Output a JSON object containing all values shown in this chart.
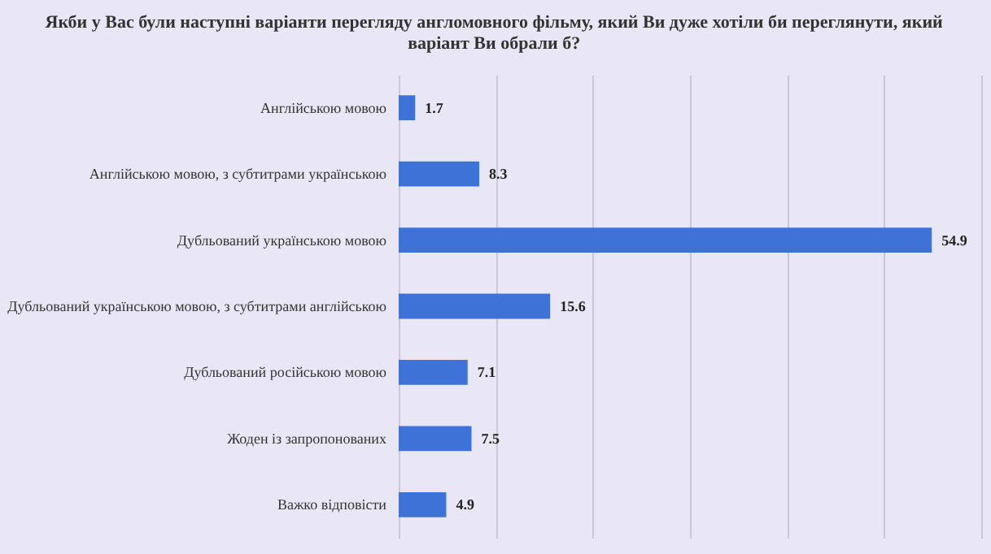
{
  "chart_data": {
    "type": "bar",
    "orientation": "horizontal",
    "title": "Якби у Вас були наступні варіанти перегляду англомовного фільму, який Ви дуже хотіли би переглянути, який варіант Ви обрали б?",
    "categories": [
      "Англійською мовою",
      "Англійською мовою, з субтитрами українською",
      "Дубльований українською мовою",
      "Дубльований українською мовою, з субтитрами англійською",
      "Дубльований російською мовою",
      "Жоден із запропонованих",
      "Важко відповісти"
    ],
    "values": [
      1.7,
      8.3,
      54.9,
      15.6,
      7.1,
      7.5,
      4.9
    ],
    "color": "#3f72d6",
    "xlim": [
      0,
      60
    ],
    "xticks": [
      {
        "value": 0,
        "label": null
      },
      {
        "value": 10,
        "label": null
      },
      {
        "value": 20,
        "label": null
      },
      {
        "value": 30,
        "label": null
      },
      {
        "value": 40,
        "label": null
      },
      {
        "value": 50,
        "label": null
      },
      {
        "value": 60,
        "label": null
      }
    ],
    "grid": "x",
    "tick_labels": "y",
    "data_labels": true
  }
}
